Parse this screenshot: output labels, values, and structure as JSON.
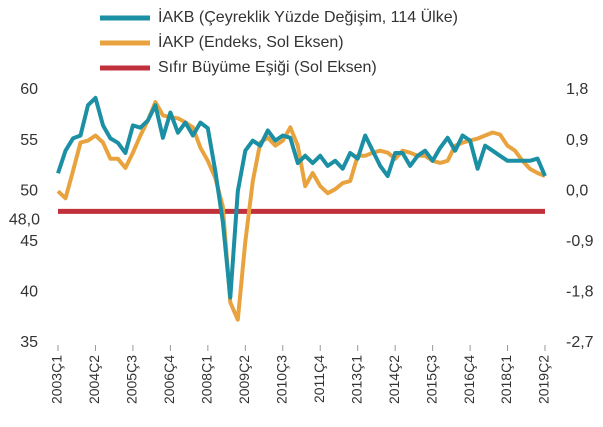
{
  "chart_data": {
    "type": "line",
    "categories": [
      "2003Ç1",
      null,
      null,
      null,
      null,
      "2004Ç2",
      null,
      null,
      null,
      null,
      "2005Ç3",
      null,
      null,
      null,
      null,
      "2006Ç4",
      null,
      null,
      null,
      null,
      "2008Ç1",
      null,
      null,
      null,
      null,
      "2009Ç2",
      null,
      null,
      null,
      null,
      "2010Ç3",
      null,
      null,
      null,
      null,
      "2011Ç4",
      null,
      null,
      null,
      null,
      "2013Ç1",
      null,
      null,
      null,
      null,
      "2014Ç2",
      null,
      null,
      null,
      null,
      "2015Ç3",
      null,
      null,
      null,
      null,
      "2016Ç4",
      null,
      null,
      null,
      null,
      "2018Ç1",
      null,
      null,
      null,
      null,
      "2019Ç2"
    ],
    "series": [
      {
        "name": "İAKB (Çeyreklik Yüzde Değişim, 114 Ülke)",
        "color": "#1b8fa3",
        "axis": "y2",
        "values": [
          0.32,
          0.72,
          0.94,
          0.99,
          1.53,
          1.66,
          1.17,
          0.94,
          0.86,
          0.68,
          1.17,
          1.13,
          1.26,
          1.53,
          0.95,
          1.4,
          1.04,
          1.22,
          0.99,
          1.22,
          1.12,
          0.36,
          -0.54,
          -1.89,
          0,
          0.72,
          0.9,
          0.81,
          1.08,
          0.9,
          0.99,
          0.95,
          0.5,
          0.63,
          0.5,
          0.63,
          0.45,
          0.54,
          0.4,
          0.68,
          0.58,
          0.99,
          0.72,
          0.45,
          0.27,
          0.68,
          0.68,
          0.45,
          0.63,
          0.72,
          0.54,
          0.77,
          0.95,
          0.72,
          0.99,
          0.9,
          0.4,
          0.81,
          0.72,
          0.63,
          0.54,
          0.54,
          0.54,
          0.54,
          0.58,
          0.27
        ]
      },
      {
        "name": "İAKP (Endeks, Sol Eksen)",
        "color": "#e9a33e",
        "values": [
          50,
          49.3,
          52,
          54.8,
          55,
          55.5,
          54.8,
          53.2,
          53.2,
          52.3,
          53.8,
          55.5,
          57,
          58.8,
          57.5,
          57.3,
          57.2,
          56.8,
          56.3,
          54.3,
          53,
          51.3,
          48.5,
          39,
          37.3,
          45,
          51,
          54.8,
          55.3,
          54.5,
          55,
          56.3,
          54.5,
          50.5,
          51.8,
          50.5,
          49.8,
          50.2,
          50.8,
          51,
          53.5,
          53.5,
          53.8,
          54,
          53.8,
          53.2,
          54,
          53.8,
          53.5,
          53.5,
          53,
          52.8,
          53,
          54.5,
          54.8,
          55,
          55.2,
          55.5,
          55.8,
          55.6,
          54.5,
          54,
          53,
          52.2,
          51.8,
          51.5
        ]
      },
      {
        "name": "Sıfır Büyüme Eşiği (Sol Eksen)",
        "color": "#c0313c",
        "values": [
          48,
          48,
          48,
          48,
          48,
          48,
          48,
          48,
          48,
          48,
          48,
          48,
          48,
          48,
          48,
          48,
          48,
          48,
          48,
          48,
          48,
          48,
          48,
          48,
          48,
          48,
          48,
          48,
          48,
          48,
          48,
          48,
          48,
          48,
          48,
          48,
          48,
          48,
          48,
          48,
          48,
          48,
          48,
          48,
          48,
          48,
          48,
          48,
          48,
          48,
          48,
          48,
          48,
          48,
          48,
          48,
          48,
          48,
          48,
          48,
          48,
          48,
          48,
          48,
          48,
          48
        ]
      }
    ],
    "annotations": [
      {
        "text": "48,0",
        "y": 48
      }
    ],
    "ylim": [
      35,
      60
    ],
    "yticks": [
      35,
      40,
      45,
      50,
      55,
      60
    ],
    "y2lim": [
      -2.7,
      1.8
    ],
    "y2ticks": [
      {
        "value": -2.7,
        "label": "-2,7"
      },
      {
        "value": -1.8,
        "label": "-1,8"
      },
      {
        "value": -0.9,
        "label": "-0,9"
      },
      {
        "value": 0,
        "label": "0,0"
      },
      {
        "value": 0.9,
        "label": "0,9"
      },
      {
        "value": 1.8,
        "label": "1,8"
      }
    ]
  }
}
